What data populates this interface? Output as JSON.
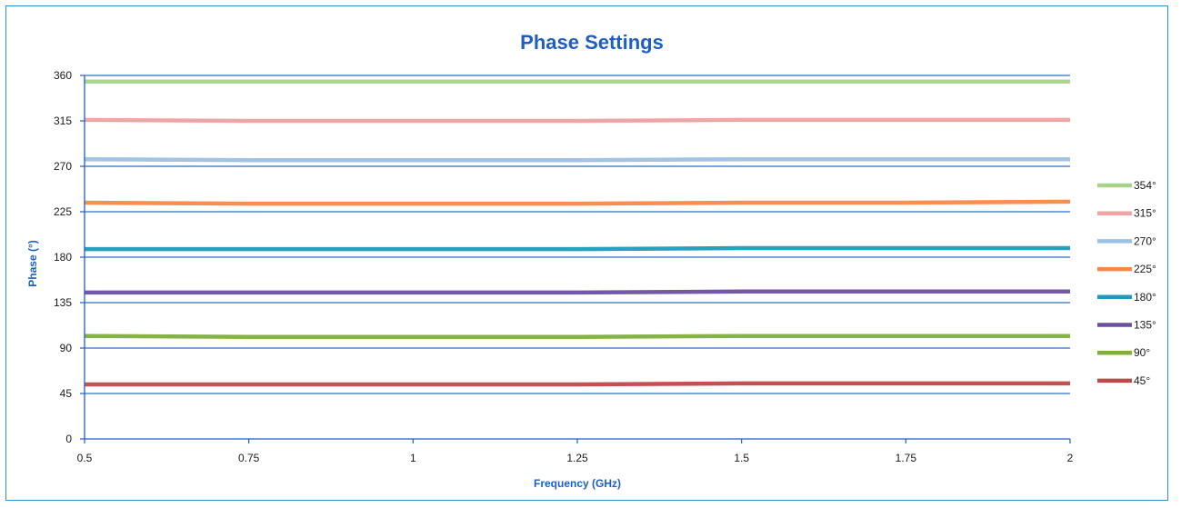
{
  "chart_data": {
    "type": "line",
    "title": "Phase Settings",
    "xlabel": "Frequency (GHz)",
    "ylabel": "Phase (°)",
    "xlim": [
      0.5,
      2
    ],
    "ylim": [
      0,
      360
    ],
    "x_ticks": [
      "0.5",
      "0.75",
      "1",
      "1.25",
      "1.5",
      "1.75",
      "2"
    ],
    "y_ticks": [
      "0",
      "45",
      "90",
      "135",
      "180",
      "225",
      "270",
      "315",
      "360"
    ],
    "grid": "horizontal",
    "legend_position": "right",
    "x": [
      0.5,
      0.75,
      1,
      1.25,
      1.5,
      1.75,
      2
    ],
    "series": [
      {
        "name": "354°",
        "color": "#a8d48a",
        "values": [
          354,
          354,
          354,
          354,
          354,
          354,
          354
        ]
      },
      {
        "name": "315°",
        "color": "#f2a3a3",
        "values": [
          316,
          315,
          315,
          315,
          316,
          316,
          316
        ]
      },
      {
        "name": "270°",
        "color": "#9cc0e3",
        "values": [
          277,
          276,
          276,
          276,
          277,
          277,
          277
        ]
      },
      {
        "name": "225°",
        "color": "#f7884a",
        "values": [
          234,
          233,
          233,
          233,
          234,
          234,
          235
        ]
      },
      {
        "name": "180°",
        "color": "#1e9bb8",
        "values": [
          188,
          188,
          188,
          188,
          189,
          189,
          189
        ]
      },
      {
        "name": "135°",
        "color": "#6b4fa0",
        "values": [
          145,
          145,
          145,
          145,
          146,
          146,
          146
        ]
      },
      {
        "name": "90°",
        "color": "#7fae3e",
        "values": [
          102,
          101,
          101,
          101,
          102,
          102,
          102
        ]
      },
      {
        "name": "45°",
        "color": "#c0474a",
        "values": [
          54,
          54,
          54,
          54,
          55,
          55,
          55
        ]
      }
    ]
  },
  "style": {
    "axis_color": "#1f5fbf",
    "gridline_color": "#2a6fc4",
    "frame_color": "#2f8fd0"
  }
}
